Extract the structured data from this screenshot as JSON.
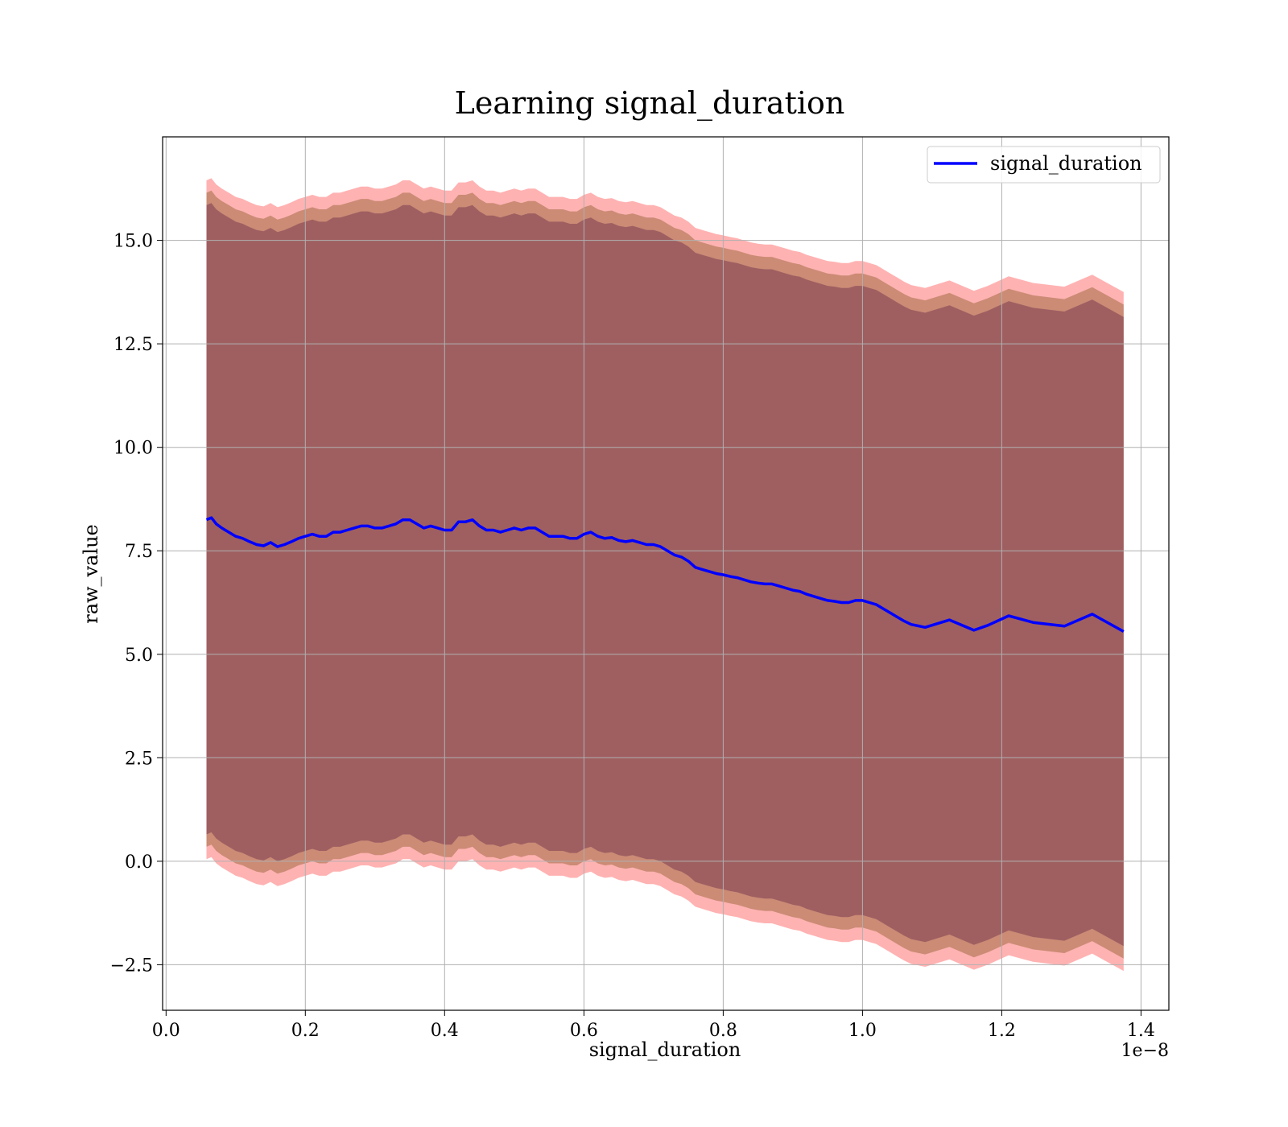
{
  "chart_data": {
    "type": "line",
    "title": "Learning signal_duration",
    "xlabel": "signal_duration",
    "ylabel": "raw_value",
    "x_offset_text": "1e−8",
    "xlim": [
      -0.005,
      1.44
    ],
    "ylim": [
      -3.6,
      17.5
    ],
    "x_ticks": [
      0.0,
      0.2,
      0.4,
      0.6,
      0.8,
      1.0,
      1.2,
      1.4
    ],
    "x_tick_labels": [
      "0.0",
      "0.2",
      "0.4",
      "0.6",
      "0.8",
      "1.0",
      "1.2",
      "1.4"
    ],
    "y_ticks": [
      -2.5,
      0.0,
      2.5,
      5.0,
      7.5,
      10.0,
      12.5,
      15.0
    ],
    "y_tick_labels": [
      "−2.5",
      "0.0",
      "2.5",
      "5.0",
      "7.5",
      "10.0",
      "12.5",
      "15.0"
    ],
    "grid": true,
    "legend_position": "upper right",
    "series": [
      {
        "name": "signal_duration",
        "color": "#0000ff",
        "x": [
          0.058,
          0.065,
          0.072,
          0.08,
          0.09,
          0.1,
          0.11,
          0.12,
          0.13,
          0.14,
          0.15,
          0.16,
          0.17,
          0.18,
          0.19,
          0.2,
          0.21,
          0.22,
          0.23,
          0.24,
          0.25,
          0.26,
          0.27,
          0.28,
          0.29,
          0.3,
          0.31,
          0.32,
          0.33,
          0.34,
          0.35,
          0.36,
          0.37,
          0.38,
          0.39,
          0.4,
          0.41,
          0.42,
          0.43,
          0.44,
          0.45,
          0.46,
          0.47,
          0.48,
          0.49,
          0.5,
          0.51,
          0.52,
          0.53,
          0.54,
          0.55,
          0.56,
          0.57,
          0.58,
          0.59,
          0.6,
          0.61,
          0.62,
          0.63,
          0.64,
          0.65,
          0.66,
          0.67,
          0.68,
          0.69,
          0.7,
          0.71,
          0.72,
          0.73,
          0.74,
          0.75,
          0.76,
          0.77,
          0.78,
          0.79,
          0.8,
          0.81,
          0.82,
          0.83,
          0.84,
          0.85,
          0.86,
          0.87,
          0.88,
          0.89,
          0.9,
          0.91,
          0.92,
          0.93,
          0.94,
          0.95,
          0.96,
          0.97,
          0.98,
          0.99,
          1.0,
          1.01,
          1.02,
          1.03,
          1.04,
          1.05,
          1.06,
          1.07,
          1.09,
          1.125,
          1.16,
          1.18,
          1.21,
          1.245,
          1.29,
          1.33,
          1.375
        ],
        "y": [
          8.25,
          8.3,
          8.15,
          8.05,
          7.95,
          7.85,
          7.8,
          7.72,
          7.65,
          7.62,
          7.7,
          7.6,
          7.65,
          7.72,
          7.8,
          7.85,
          7.9,
          7.85,
          7.85,
          7.95,
          7.95,
          8.0,
          8.05,
          8.1,
          8.1,
          8.05,
          8.05,
          8.1,
          8.15,
          8.25,
          8.25,
          8.15,
          8.05,
          8.1,
          8.05,
          8.0,
          8.0,
          8.2,
          8.2,
          8.25,
          8.1,
          8.0,
          8.0,
          7.95,
          8.0,
          8.05,
          8.0,
          8.05,
          8.05,
          7.95,
          7.85,
          7.85,
          7.85,
          7.8,
          7.8,
          7.9,
          7.95,
          7.85,
          7.8,
          7.82,
          7.75,
          7.72,
          7.75,
          7.7,
          7.65,
          7.65,
          7.6,
          7.5,
          7.4,
          7.35,
          7.25,
          7.1,
          7.05,
          7.0,
          6.95,
          6.92,
          6.88,
          6.85,
          6.8,
          6.75,
          6.72,
          6.7,
          6.7,
          6.65,
          6.6,
          6.55,
          6.52,
          6.45,
          6.4,
          6.35,
          6.3,
          6.28,
          6.25,
          6.25,
          6.3,
          6.3,
          6.25,
          6.2,
          6.1,
          6.0,
          5.9,
          5.8,
          5.72,
          5.65,
          5.83,
          5.58,
          5.7,
          5.93,
          5.77,
          5.68,
          5.97,
          5.55
        ]
      }
    ],
    "bands": [
      {
        "role": "outer",
        "color": "#ff6666",
        "opacity": 0.5,
        "half_width": 8.2
      },
      {
        "role": "middle",
        "color": "#8b5a2b",
        "opacity": 0.45,
        "half_width": 7.9
      },
      {
        "role": "inner",
        "color": "#6b2a4a",
        "opacity": 0.45,
        "half_width": 7.6
      }
    ]
  }
}
